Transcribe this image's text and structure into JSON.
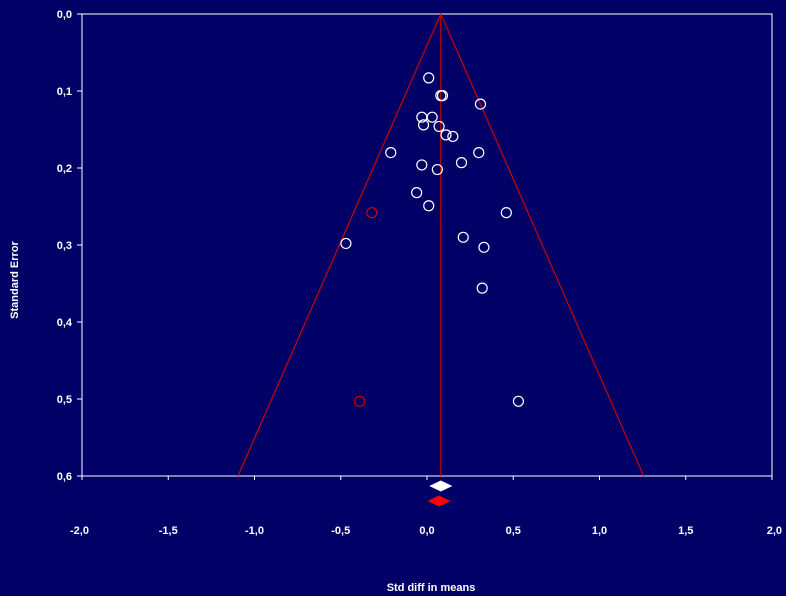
{
  "chart_data": {
    "type": "scatter",
    "title": "",
    "xlabel": "Std diff in means",
    "ylabel": "Standard Error",
    "xlim": [
      -2.0,
      2.0
    ],
    "ylim": [
      0.0,
      0.6
    ],
    "y_inverted": true,
    "x_ticks": [
      -2.0,
      -1.5,
      -1.0,
      -0.5,
      0.0,
      0.5,
      1.0,
      1.5,
      2.0
    ],
    "x_tick_labels": [
      "-2,0",
      "-1,5",
      "-1,0",
      "-0,5",
      "0,0",
      "0,5",
      "1,0",
      "1,5",
      "2,0"
    ],
    "y_ticks": [
      0.0,
      0.1,
      0.2,
      0.3,
      0.4,
      0.5,
      0.6
    ],
    "y_tick_labels": [
      "0,0",
      "0,1",
      "0,2",
      "0,3",
      "0,4",
      "0,5",
      "0,6"
    ],
    "grid": false,
    "legend": "none",
    "colors": {
      "background": "#000066",
      "axes": "#ffffff",
      "funnel": "#cc0000",
      "observed_points": "#ffffff",
      "imputed_points": "#cc0000",
      "observed_diamond": "#ffffff",
      "imputed_diamond": "#ff0000"
    },
    "pooled_effect": 0.08,
    "funnel_z": 1.96,
    "series": [
      {
        "role": "observed",
        "points": [
          {
            "x": 0.01,
            "y": 0.083
          },
          {
            "x": 0.08,
            "y": 0.106
          },
          {
            "x": 0.09,
            "y": 0.106
          },
          {
            "x": 0.31,
            "y": 0.117
          },
          {
            "x": -0.03,
            "y": 0.134
          },
          {
            "x": 0.03,
            "y": 0.134
          },
          {
            "x": -0.02,
            "y": 0.144
          },
          {
            "x": 0.07,
            "y": 0.146
          },
          {
            "x": 0.11,
            "y": 0.157
          },
          {
            "x": 0.15,
            "y": 0.159
          },
          {
            "x": -0.21,
            "y": 0.18
          },
          {
            "x": 0.3,
            "y": 0.18
          },
          {
            "x": 0.2,
            "y": 0.193
          },
          {
            "x": -0.03,
            "y": 0.196
          },
          {
            "x": 0.06,
            "y": 0.202
          },
          {
            "x": -0.06,
            "y": 0.232
          },
          {
            "x": 0.01,
            "y": 0.249
          },
          {
            "x": 0.46,
            "y": 0.258
          },
          {
            "x": 0.21,
            "y": 0.29
          },
          {
            "x": -0.47,
            "y": 0.298
          },
          {
            "x": 0.33,
            "y": 0.303
          },
          {
            "x": 0.32,
            "y": 0.356
          },
          {
            "x": 0.53,
            "y": 0.503
          }
        ]
      },
      {
        "role": "imputed",
        "points": [
          {
            "x": -0.32,
            "y": 0.258
          },
          {
            "x": -0.39,
            "y": 0.503
          }
        ]
      }
    ],
    "summary_diamonds": [
      {
        "role": "observed",
        "center": 0.08,
        "lower": 0.02,
        "upper": 0.14
      },
      {
        "role": "imputed",
        "center": 0.07,
        "lower": 0.01,
        "upper": 0.13
      }
    ]
  }
}
